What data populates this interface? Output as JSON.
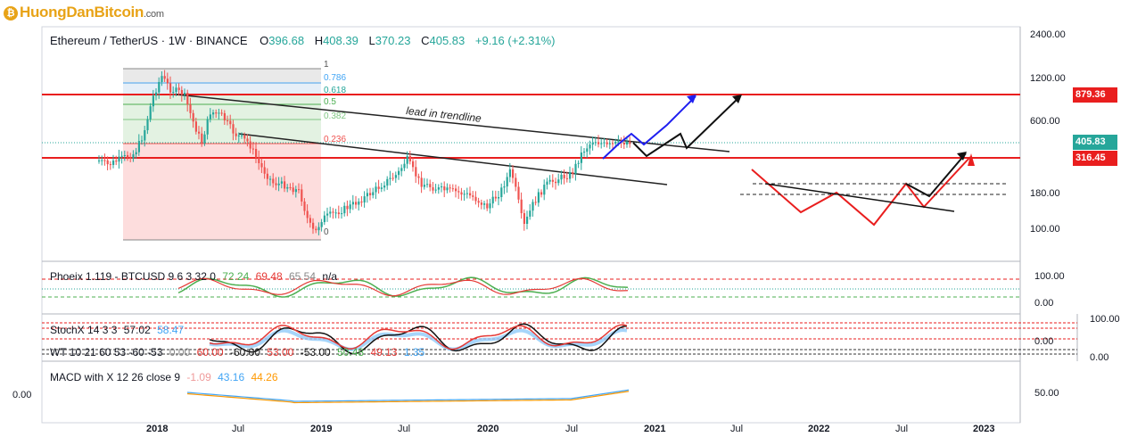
{
  "branding": {
    "logo_text": "HuongDanBitcoin",
    "logo_suffix": ".com"
  },
  "symbol": {
    "title": "Ethereum / TetherUS · 1W · BINANCE",
    "open_label": "O",
    "open": "396.68",
    "high_label": "H",
    "high": "408.39",
    "low_label": "L",
    "low": "370.23",
    "close_label": "C",
    "close": "405.83",
    "change": "+9.16 (+2.31%)"
  },
  "price_axis": {
    "ticks": [
      "2400.00",
      "1200.00",
      "600.00",
      "180.00",
      "100.00"
    ]
  },
  "price_tags": {
    "current": "405.83",
    "resistance": "879.36",
    "support": "316.45"
  },
  "fib_levels": [
    "1",
    "0.786",
    "0.618",
    "0.5",
    "0.382",
    "0.236",
    "0"
  ],
  "annotation": "lead in trendline",
  "indicators": {
    "phoenix": {
      "name": "Phoeix 1.119 - BTCUSD 9 6 3 32 0",
      "v1": "72.24",
      "v2": "69.48",
      "v3": "65.54",
      "v4": "n/a",
      "axis": [
        "100.00",
        "0.00"
      ]
    },
    "stochx": {
      "name": "StochX 14 3 3",
      "v1": "57.02",
      "v2": "58.47",
      "axis_left": "0.00",
      "axis_right": [
        "100.00",
        "0.00"
      ]
    },
    "wt": {
      "name": "WT 10 21 60 53 -60 -53",
      "values": [
        "0.00",
        "60.00",
        "-60.00",
        "53.00",
        "-53.00",
        "50.48",
        "49.13",
        "1.35"
      ]
    },
    "macd": {
      "name": "MACD with X 12 26 close 9",
      "v1": "-1.09",
      "v2": "43.16",
      "v3": "44.26",
      "left_axis": "0.00",
      "axis": [
        "50.00"
      ]
    }
  },
  "time_axis": {
    "labels": [
      "2018",
      "Jul",
      "2019",
      "Jul",
      "2020",
      "Jul",
      "2021",
      "Jul",
      "2022",
      "Jul",
      "2023"
    ]
  },
  "colors": {
    "up": "#26a69a",
    "down": "#ef5350",
    "resistance": "#e91e1e",
    "current": "#26a69a",
    "fib_0618": "#26a69a",
    "fib_0786": "#42a5f5"
  }
}
